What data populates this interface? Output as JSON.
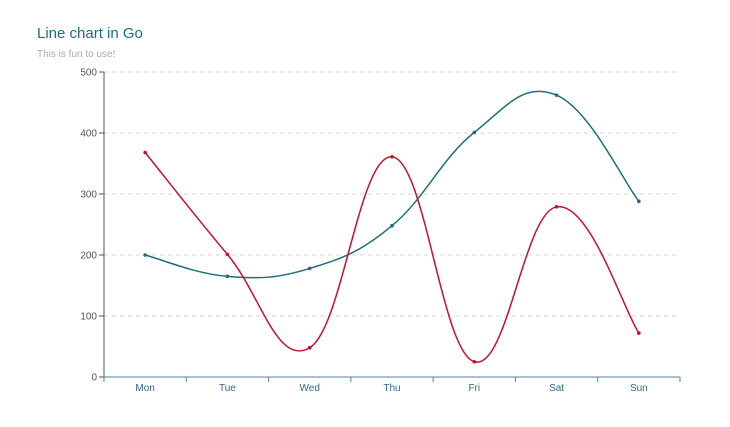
{
  "chart_data": {
    "type": "line",
    "title": "Line chart in Go",
    "subtitle": "This is fun to use!",
    "xlabel": "",
    "ylabel": "",
    "categories": [
      "Mon",
      "Tue",
      "Wed",
      "Thu",
      "Fri",
      "Sat",
      "Sun"
    ],
    "ylim": [
      0,
      500
    ],
    "yticks": [
      0,
      100,
      200,
      300,
      400,
      500
    ],
    "grid": true,
    "smooth": true,
    "series": [
      {
        "values": [
          200,
          165,
          178,
          248,
          401,
          462,
          288
        ],
        "color": "#1f6f78"
      },
      {
        "values": [
          368,
          201,
          48,
          361,
          25,
          279,
          72
        ],
        "color": "#c8102e"
      }
    ]
  }
}
